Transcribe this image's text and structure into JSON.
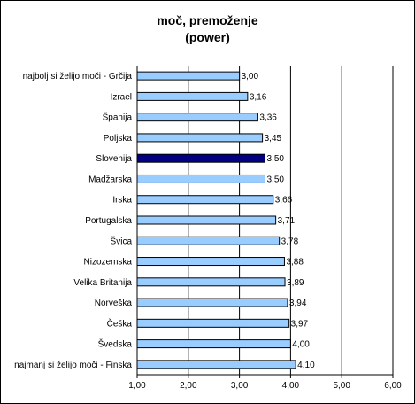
{
  "chart_data": {
    "type": "bar",
    "orientation": "horizontal",
    "title": "moč, premoženje",
    "subtitle": "(power)",
    "categories": [
      "najbolj si želijo moči - Grčija",
      "Izrael",
      "Španija",
      "Poljska",
      "Slovenija",
      "Madžarska",
      "Irska",
      "Portugalska",
      "Švica",
      "Nizozemska",
      "Velika Britanija",
      "Norveška",
      "Češka",
      "Švedska",
      "najmanj si želijo moči - Finska"
    ],
    "values": [
      3.0,
      3.16,
      3.36,
      3.45,
      3.5,
      3.5,
      3.66,
      3.71,
      3.78,
      3.88,
      3.89,
      3.94,
      3.97,
      4.0,
      4.1
    ],
    "value_labels": [
      "3,00",
      "3,16",
      "3,36",
      "3,45",
      "3,50",
      "3,50",
      "3,66",
      "3,71",
      "3,78",
      "3,88",
      "3,89",
      "3,94",
      "3,97",
      "4,00",
      "4,10"
    ],
    "highlight": "Slovenija",
    "xlim": [
      1.0,
      6.0
    ],
    "xticks": [
      1,
      2,
      3,
      4,
      5,
      6
    ],
    "xtick_labels": [
      "1,00",
      "2,00",
      "3,00",
      "4,00",
      "5,00",
      "6,00"
    ],
    "grid": "vertical",
    "legend": "none",
    "colors": {
      "bar": "#99ccff",
      "highlight_bar": "#000080",
      "bar_outline": "#000000",
      "axis": "#000000"
    }
  }
}
